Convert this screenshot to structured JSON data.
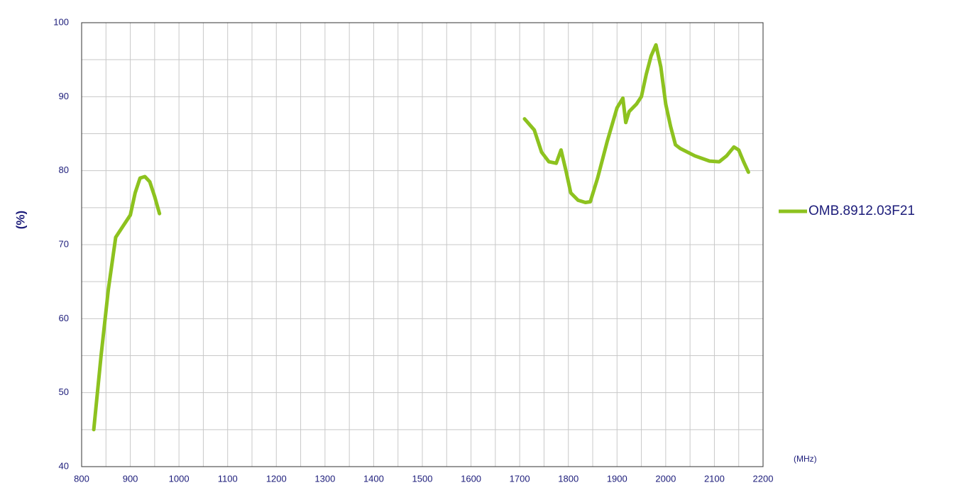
{
  "chart_data": {
    "type": "line",
    "y_label": "(%)",
    "x_label": "(MHz)",
    "x": [
      825,
      840,
      855,
      870,
      885,
      900,
      910,
      920,
      930,
      940,
      950,
      960,
      null,
      1710,
      1730,
      1745,
      1760,
      1775,
      1785,
      1795,
      1805,
      1820,
      1835,
      1845,
      1860,
      1880,
      1900,
      1912,
      1918,
      1925,
      1940,
      1950,
      1960,
      1970,
      1980,
      1990,
      2000,
      2010,
      2020,
      2030,
      2060,
      2090,
      2110,
      2125,
      2140,
      2150,
      2160,
      2170
    ],
    "series": [
      {
        "name": "OMB.8912.03F21",
        "color": "#8dc21f",
        "values": [
          45,
          55,
          64,
          71,
          72.5,
          74,
          77,
          79,
          79.2,
          78.5,
          76.5,
          74.2,
          null,
          87,
          85.5,
          82.5,
          81.2,
          81,
          82.8,
          80,
          77,
          76,
          75.7,
          75.8,
          79,
          84,
          88.5,
          89.8,
          86.5,
          88,
          89,
          90,
          93,
          95.5,
          97,
          94,
          89,
          86,
          83.5,
          83,
          82,
          81.3,
          81.2,
          82,
          83.2,
          82.8,
          81.2,
          79.8
        ]
      }
    ],
    "xlim": [
      800,
      2200
    ],
    "ylim": [
      40,
      100
    ],
    "xticks": [
      800,
      900,
      1000,
      1100,
      1200,
      1300,
      1400,
      1500,
      1600,
      1700,
      1800,
      1900,
      2000,
      2100,
      2200
    ],
    "yticks": [
      40,
      50,
      60,
      70,
      80,
      90,
      100
    ],
    "x_minor_ticks": [
      850,
      950,
      1050,
      1150,
      1250,
      1350,
      1450,
      1550,
      1650,
      1750,
      1850,
      1950,
      2050,
      2150
    ],
    "y_minor_ticks": [
      45,
      55,
      65,
      75,
      85,
      95
    ],
    "grid": true,
    "legend": "right"
  }
}
